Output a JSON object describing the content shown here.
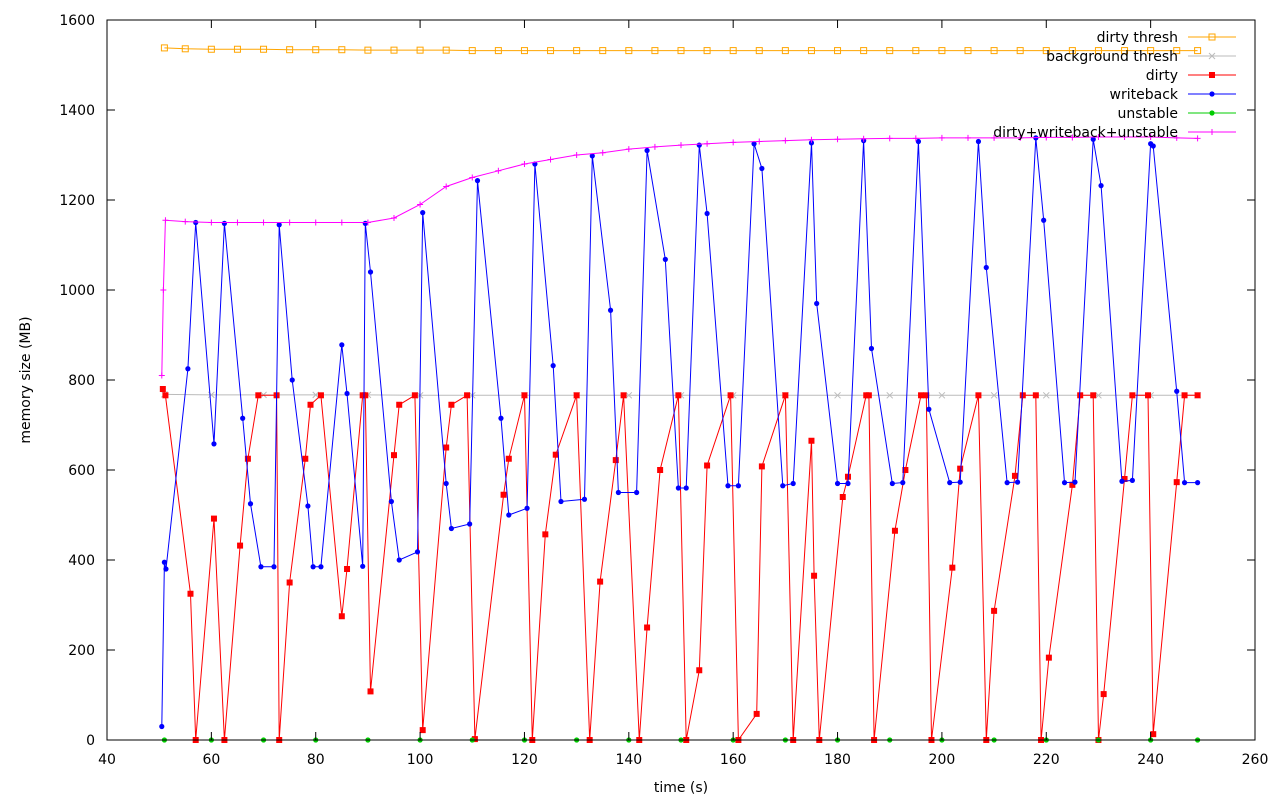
{
  "chart_data": {
    "type": "line",
    "title": "",
    "xlabel": "time (s)",
    "ylabel": "memory size (MB)",
    "xlim": [
      40,
      260
    ],
    "ylim": [
      0,
      1600
    ],
    "xticks": [
      "40",
      "60",
      "80",
      "100",
      "120",
      "140",
      "160",
      "180",
      "200",
      "220",
      "240",
      "260"
    ],
    "yticks": [
      "0",
      "200",
      "400",
      "600",
      "800",
      "1000",
      "1200",
      "1400",
      "1600"
    ],
    "grid": false,
    "legend_position": "top-right",
    "series": [
      {
        "name": "dirty thresh",
        "color": "#ffa500",
        "marker": "square-open",
        "x": [
          51,
          55,
          60,
          65,
          70,
          75,
          80,
          85,
          90,
          95,
          100,
          105,
          110,
          115,
          120,
          125,
          130,
          135,
          140,
          145,
          150,
          155,
          160,
          165,
          170,
          175,
          180,
          185,
          190,
          195,
          200,
          205,
          210,
          215,
          220,
          225,
          230,
          235,
          240,
          245,
          249
        ],
        "y": [
          1538,
          1536,
          1535,
          1535,
          1535,
          1534,
          1534,
          1534,
          1533,
          1533,
          1533,
          1533,
          1532,
          1532,
          1532,
          1532,
          1532,
          1532,
          1532,
          1532,
          1532,
          1532,
          1532,
          1532,
          1532,
          1532,
          1532,
          1532,
          1532,
          1532,
          1532,
          1532,
          1532,
          1532,
          1532,
          1532,
          1532,
          1532,
          1532,
          1532,
          1532
        ]
      },
      {
        "name": "background thresh",
        "color": "#bbbbbb",
        "marker": "x",
        "x": [
          51,
          60,
          70,
          80,
          90,
          100,
          110,
          120,
          130,
          140,
          150,
          160,
          170,
          180,
          190,
          200,
          210,
          220,
          230,
          240,
          249
        ],
        "y": [
          768,
          767,
          767,
          767,
          767,
          766,
          766,
          766,
          766,
          766,
          766,
          766,
          766,
          766,
          766,
          766,
          766,
          766,
          766,
          766,
          766
        ]
      },
      {
        "name": "dirty",
        "color": "#ff0000",
        "marker": "square",
        "x": [
          50.7,
          51.2,
          56,
          57,
          60.5,
          62.5,
          65.5,
          67,
          69,
          72.5,
          73,
          75,
          78,
          79,
          81,
          85,
          86,
          89,
          89.5,
          90.5,
          95,
          96,
          99,
          100.5,
          105,
          106,
          109,
          110.5,
          116,
          117,
          120,
          121.5,
          124,
          126,
          130,
          132.5,
          134.5,
          137.5,
          139,
          142,
          143.5,
          146,
          149.5,
          151,
          153.5,
          155,
          159.5,
          161,
          164.5,
          165.5,
          170,
          171.5,
          175,
          175.5,
          176.5,
          181,
          182,
          185.5,
          186,
          187,
          191,
          193,
          196,
          197,
          198,
          202,
          203.5,
          207,
          208.5,
          210,
          214,
          215.5,
          218,
          219,
          220.5,
          225,
          226.5,
          229,
          230,
          231,
          235,
          236.5,
          239.5,
          240.5,
          245,
          246.5,
          249
        ],
        "y": [
          780,
          766,
          325,
          0,
          492,
          0,
          432,
          625,
          766,
          766,
          0,
          350,
          625,
          745,
          766,
          275,
          380,
          766,
          766,
          108,
          633,
          745,
          766,
          22,
          650,
          745,
          766,
          2,
          545,
          625,
          766,
          0,
          457,
          634,
          766,
          0,
          352,
          622,
          766,
          0,
          250,
          600,
          766,
          0,
          155,
          610,
          766,
          0,
          58,
          608,
          766,
          0,
          665,
          365,
          0,
          540,
          585,
          766,
          766,
          0,
          465,
          600,
          766,
          766,
          0,
          383,
          603,
          766,
          0,
          287,
          587,
          766,
          766,
          0,
          183,
          567,
          766,
          766,
          0,
          102,
          580,
          766,
          766,
          13,
          573,
          766,
          766
        ]
      },
      {
        "name": "writeback",
        "color": "#0000ff",
        "marker": "circle",
        "x": [
          50.5,
          51,
          51.3,
          55.5,
          57,
          60.5,
          62.5,
          66,
          67.5,
          69.5,
          72,
          73,
          75.5,
          78.5,
          79.5,
          81,
          85,
          86,
          89,
          89.5,
          90.5,
          94.5,
          96,
          99.5,
          100.5,
          105,
          106,
          109.5,
          111,
          115.5,
          117,
          120.5,
          122,
          125.5,
          127,
          131.5,
          133,
          136.5,
          138,
          141.5,
          143.5,
          147,
          149.5,
          151,
          153.5,
          155,
          159,
          161,
          164,
          165.5,
          169.5,
          171.5,
          175,
          176,
          180,
          182,
          185,
          186.5,
          190.5,
          192.5,
          195.5,
          197.5,
          201.5,
          203.5,
          207,
          208.5,
          212.5,
          214.5,
          218,
          219.5,
          223.5,
          225.5,
          229,
          230.5,
          234.5,
          236.5,
          240,
          240.5,
          245,
          246.5,
          249
        ],
        "y": [
          30,
          395,
          380,
          825,
          1150,
          658,
          1148,
          715,
          525,
          385,
          385,
          1145,
          800,
          520,
          385,
          385,
          878,
          770,
          386,
          1148,
          1040,
          530,
          400,
          418,
          1172,
          570,
          470,
          480,
          1243,
          715,
          500,
          515,
          1280,
          832,
          530,
          535,
          1298,
          955,
          550,
          550,
          1310,
          1068,
          560,
          560,
          1322,
          1170,
          565,
          565,
          1325,
          1270,
          565,
          570,
          1327,
          970,
          570,
          570,
          1332,
          870,
          570,
          572,
          1330,
          735,
          572,
          573,
          1330,
          1050,
          572,
          573,
          1338,
          1155,
          572,
          573,
          1335,
          1232,
          575,
          577,
          1325,
          1320,
          775,
          572,
          572
        ]
      },
      {
        "name": "unstable",
        "color": "#00cc00",
        "marker": "circle",
        "x": [
          51,
          60,
          70,
          80,
          90,
          100,
          110,
          120,
          130,
          140,
          150,
          160,
          170,
          180,
          190,
          200,
          210,
          220,
          230,
          240,
          249
        ],
        "y": [
          0,
          0,
          0,
          0,
          0,
          0,
          0,
          0,
          0,
          0,
          0,
          0,
          0,
          0,
          0,
          0,
          0,
          0,
          0,
          0,
          0
        ]
      },
      {
        "name": "dirty+writeback+unstable",
        "color": "#ff00ff",
        "marker": "plus",
        "x": [
          50.5,
          50.8,
          51.2,
          55,
          60,
          65,
          70,
          75,
          80,
          85,
          90,
          95,
          100,
          105,
          110,
          115,
          120,
          125,
          130,
          135,
          140,
          145,
          150,
          155,
          160,
          165,
          170,
          175,
          180,
          185,
          190,
          195,
          200,
          205,
          210,
          215,
          220,
          225,
          230,
          235,
          240,
          245,
          249
        ],
        "y": [
          810,
          1000,
          1155,
          1152,
          1150,
          1150,
          1150,
          1150,
          1150,
          1150,
          1150,
          1160,
          1190,
          1230,
          1250,
          1265,
          1280,
          1290,
          1300,
          1305,
          1313,
          1318,
          1322,
          1325,
          1328,
          1330,
          1332,
          1334,
          1335,
          1336,
          1337,
          1337,
          1338,
          1338,
          1338,
          1338,
          1339,
          1339,
          1340,
          1340,
          1340,
          1338,
          1337
        ]
      }
    ]
  }
}
